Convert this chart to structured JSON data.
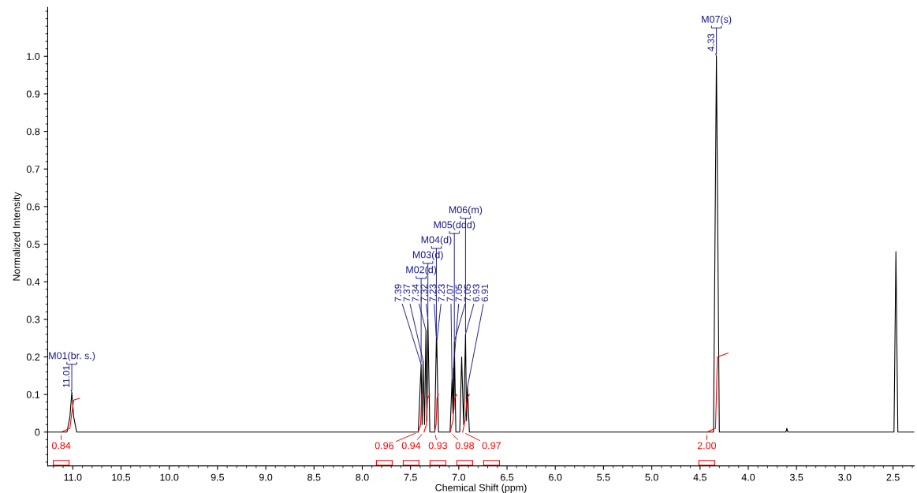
{
  "chart_data": {
    "type": "line",
    "xlabel": "Chemical Shift (ppm)",
    "ylabel": "Normalized Intensity",
    "xlim": [
      11.26,
      2.28
    ],
    "xticks": [
      {
        "value": 11,
        "label": "11.0"
      },
      10.5,
      {
        "value": 10,
        "label": "10.0"
      },
      9.5,
      {
        "value": 9,
        "label": "9.0"
      },
      8.5,
      {
        "value": 8,
        "label": "8.0"
      },
      7.5,
      {
        "value": 7,
        "label": "7.0"
      },
      6.5,
      {
        "value": 6,
        "label": "6.0"
      },
      5.5,
      {
        "value": 5,
        "label": "5.0"
      },
      4.5,
      {
        "value": 4,
        "label": "4.0"
      },
      3.5,
      {
        "value": 3,
        "label": "3.0"
      },
      2.5
    ],
    "ylim": [
      -0.09,
      1.13
    ],
    "yticks": [
      0,
      0.1,
      0.2,
      0.3,
      0.4,
      0.5,
      0.6,
      0.7,
      0.8,
      0.9,
      {
        "value": 1,
        "label": "1.0"
      }
    ],
    "grid": false,
    "legend": false,
    "marker": "none",
    "line_style": "solid",
    "series": [
      {
        "color": "#000000",
        "x": [
          11.26,
          11.06,
          11.03,
          11.01,
          10.99,
          10.96,
          7.42,
          7.39,
          7.38,
          7.37,
          7.355,
          7.34,
          7.33,
          7.32,
          7.3,
          7.25,
          7.232,
          7.23,
          7.228,
          7.21,
          7.09,
          7.07,
          7.06,
          7.055,
          7.05,
          7.046,
          7.03,
          6.99,
          6.97,
          6.95,
          6.93,
          6.92,
          6.91,
          6.89,
          4.36,
          4.33,
          4.3,
          3.61,
          3.6,
          3.59,
          2.49,
          2.47,
          2.45,
          2.28
        ],
        "values": [
          0,
          0,
          0.04,
          0.105,
          0.04,
          0,
          0,
          0.18,
          0.02,
          0.19,
          0.02,
          0.27,
          0.03,
          0.3,
          0,
          0,
          0.25,
          0.2,
          0.24,
          0,
          0,
          0.14,
          0.05,
          0.17,
          0.06,
          0.24,
          0,
          0,
          0.2,
          0.02,
          0.26,
          0.03,
          0.12,
          0,
          0,
          1.0,
          0,
          0,
          0.01,
          0,
          0,
          0.48,
          0,
          0
        ]
      },
      {
        "color": "#ff0000",
        "x": [
          11.12,
          11.03,
          11.01,
          10.99,
          10.93
        ],
        "values": [
          0,
          0.01,
          0.05,
          0.085,
          0.09
        ]
      },
      {
        "color": "#ff0000",
        "x": [
          7.42,
          7.395,
          7.385,
          7.38
        ],
        "values": [
          0,
          0.02,
          0.09,
          0.1
        ]
      },
      {
        "color": "#ff0000",
        "x": [
          7.36,
          7.335,
          7.325,
          7.3
        ],
        "values": [
          0,
          0.02,
          0.09,
          0.1
        ]
      },
      {
        "color": "#ff0000",
        "x": [
          7.25,
          7.235,
          7.225,
          7.21
        ],
        "values": [
          0,
          0.02,
          0.09,
          0.1
        ]
      },
      {
        "color": "#ff0000",
        "x": [
          7.09,
          7.06,
          7.045,
          7.02
        ],
        "values": [
          0,
          0.03,
          0.09,
          0.1
        ]
      },
      {
        "color": "#ff0000",
        "x": [
          6.96,
          6.935,
          6.915,
          6.89
        ],
        "values": [
          0,
          0.03,
          0.09,
          0.1
        ]
      },
      {
        "color": "#ff0000",
        "x": [
          4.43,
          4.34,
          4.33,
          4.32,
          4.21
        ],
        "values": [
          0,
          0.01,
          0.1,
          0.2,
          0.21
        ]
      }
    ],
    "annotations": [
      {
        "text": "11.01",
        "x": 11.01,
        "y": 0.105
      },
      {
        "text": "7.39",
        "x": 7.39,
        "y": 0.18
      },
      {
        "text": "7.37",
        "x": 7.37,
        "y": 0.19
      },
      {
        "text": "7.34",
        "x": 7.34,
        "y": 0.27
      },
      {
        "text": "7.32",
        "x": 7.32,
        "y": 0.3
      },
      {
        "text": "7.23",
        "x": 7.232,
        "y": 0.25
      },
      {
        "text": "7.23",
        "x": 7.228,
        "y": 0.24
      },
      {
        "text": "7.07",
        "x": 7.07,
        "y": 0.14
      },
      {
        "text": "7.05",
        "x": 7.055,
        "y": 0.17
      },
      {
        "text": "7.05",
        "x": 7.046,
        "y": 0.24
      },
      {
        "text": "6.93",
        "x": 6.93,
        "y": 0.26
      },
      {
        "text": "6.91",
        "x": 6.91,
        "y": 0.12
      },
      {
        "text": "4.33",
        "x": 4.33,
        "y": 1.0
      },
      {
        "text": "M01(br. s.)",
        "x": 11.01,
        "y": 0.105
      },
      {
        "text": "M02(d)",
        "x": 7.39,
        "y": 0.18
      },
      {
        "text": "M03(d)",
        "x": 7.32,
        "y": 0.3
      },
      {
        "text": "M04(d)",
        "x": 7.232,
        "y": 0.25
      },
      {
        "text": "M05(ddd)",
        "x": 7.046,
        "y": 0.24
      },
      {
        "text": "M06(m)",
        "x": 6.93,
        "y": 0.26
      },
      {
        "text": "M07(s)",
        "x": 4.33,
        "y": 1.0
      },
      {
        "text": "0.84",
        "x": 11.12,
        "y": 0
      },
      {
        "text": "0.96",
        "x": 7.42,
        "y": 0
      },
      {
        "text": "0.94",
        "x": 7.36,
        "y": 0
      },
      {
        "text": "0.93",
        "x": 7.25,
        "y": 0
      },
      {
        "text": "0.98",
        "x": 7.09,
        "y": 0
      },
      {
        "text": "0.97",
        "x": 6.96,
        "y": 0
      },
      {
        "text": "2.00",
        "x": 4.43,
        "y": 0
      }
    ]
  }
}
